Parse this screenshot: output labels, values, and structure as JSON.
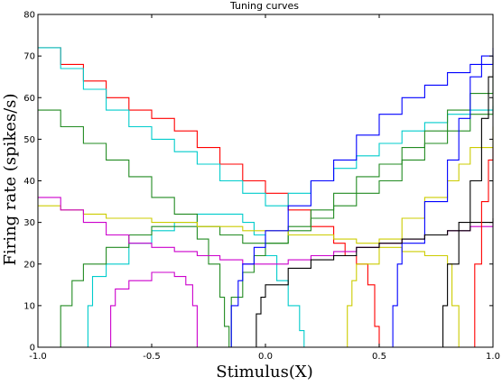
{
  "chart_data": {
    "type": "line",
    "title": "Tuning curves",
    "xlabel": "Stimulus(X)",
    "ylabel": "Firing rate (spikes/s)",
    "xlim": [
      -1.0,
      1.0
    ],
    "ylim": [
      0,
      80
    ],
    "xticks": [
      "-1.0",
      "-0.5",
      "0.0",
      "0.5",
      "1.0"
    ],
    "yticks": [
      "0",
      "10",
      "20",
      "30",
      "40",
      "50",
      "60",
      "70",
      "80"
    ],
    "grid": false,
    "series": [
      {
        "color": "#ff0000",
        "x": [
          -1.0,
          -0.9,
          -0.8,
          -0.7,
          -0.6,
          -0.5,
          -0.4,
          -0.3,
          -0.2,
          -0.1,
          0.0,
          0.1,
          0.2,
          0.3,
          0.35,
          0.4,
          0.45,
          0.48,
          0.5
        ],
        "y": [
          72,
          68,
          64,
          60,
          57,
          55,
          52,
          48,
          44,
          40,
          37,
          33,
          29,
          25,
          22,
          20,
          15,
          5,
          0
        ]
      },
      {
        "color": "#00cccc",
        "x": [
          -1.0,
          -0.9,
          -0.8,
          -0.7,
          -0.6,
          -0.5,
          -0.4,
          -0.3,
          -0.2,
          -0.1,
          0.0,
          0.1,
          0.2,
          0.3,
          0.4,
          0.5,
          0.6,
          0.7,
          0.8,
          0.9,
          1.0
        ],
        "y": [
          72,
          67,
          62,
          57,
          53,
          50,
          47,
          44,
          40,
          37,
          34,
          37,
          40,
          43,
          46,
          49,
          52,
          54,
          56,
          57,
          58
        ]
      },
      {
        "color": "#00cccc",
        "x": [
          -0.79,
          -0.78,
          -0.76,
          -0.7,
          -0.6,
          -0.5,
          -0.4,
          -0.3,
          -0.2,
          -0.1,
          -0.05,
          0.0,
          0.05,
          0.1,
          0.15,
          0.17
        ],
        "y": [
          0,
          10,
          17,
          20,
          25,
          28,
          30,
          32,
          32,
          30,
          27,
          22,
          16,
          10,
          4,
          0
        ]
      },
      {
        "color": "#228b22",
        "x": [
          -1.0,
          -0.9,
          -0.8,
          -0.7,
          -0.6,
          -0.5,
          -0.4,
          -0.3,
          -0.25,
          -0.2,
          -0.18,
          -0.16
        ],
        "y": [
          57,
          53,
          49,
          45,
          41,
          36,
          32,
          26,
          20,
          12,
          5,
          0
        ]
      },
      {
        "color": "#228b22",
        "x": [
          -0.92,
          -0.9,
          -0.85,
          -0.8,
          -0.7,
          -0.6,
          -0.5,
          -0.4,
          -0.3,
          -0.2,
          -0.1,
          0.0,
          0.1,
          0.2,
          0.3,
          0.4,
          0.5,
          0.6,
          0.7,
          0.8,
          0.9,
          1.0
        ],
        "y": [
          0,
          10,
          16,
          20,
          24,
          27,
          29,
          29,
          29,
          27,
          25,
          25,
          28,
          31,
          34,
          37,
          40,
          45,
          49,
          52,
          56,
          60
        ]
      },
      {
        "color": "#228b22",
        "x": [
          -0.2,
          -0.15,
          -0.1,
          -0.05,
          0.0,
          0.1,
          0.2,
          0.3,
          0.4,
          0.5,
          0.6,
          0.7,
          0.8,
          0.9,
          1.0
        ],
        "y": [
          0,
          12,
          18,
          22,
          25,
          29,
          33,
          37,
          41,
          44,
          48,
          52,
          57,
          61,
          65
        ]
      },
      {
        "color": "#cccc00",
        "x": [
          -1.0,
          -0.9,
          -0.8,
          -0.7,
          -0.6,
          -0.5,
          -0.4,
          -0.3,
          -0.2,
          -0.1,
          0.0,
          0.1,
          0.2,
          0.3,
          0.4,
          0.5,
          0.6,
          0.7,
          0.8,
          0.82,
          0.85
        ],
        "y": [
          34,
          33,
          32,
          31,
          31,
          30,
          30,
          29,
          29,
          28,
          28,
          27,
          27,
          26,
          25,
          24,
          23,
          22,
          20,
          10,
          0
        ]
      },
      {
        "color": "#cccc00",
        "x": [
          0.35,
          0.36,
          0.38,
          0.4,
          0.5,
          0.6,
          0.7,
          0.8,
          0.85,
          0.9,
          1.0
        ],
        "y": [
          0,
          10,
          16,
          20,
          26,
          31,
          36,
          40,
          44,
          48,
          53
        ]
      },
      {
        "color": "#cc00cc",
        "x": [
          -1.0,
          -0.9,
          -0.8,
          -0.7,
          -0.6,
          -0.5,
          -0.4,
          -0.3,
          -0.2,
          -0.1,
          0.0,
          0.1,
          0.2,
          0.3,
          0.4,
          0.5,
          0.6,
          0.7,
          0.8,
          0.9,
          1.0
        ],
        "y": [
          36,
          33,
          30,
          27,
          25,
          24,
          23,
          22,
          21,
          20,
          20,
          21,
          22,
          23,
          24,
          25,
          26,
          27,
          28,
          29,
          30
        ]
      },
      {
        "color": "#cc00cc",
        "x": [
          -0.69,
          -0.68,
          -0.66,
          -0.6,
          -0.5,
          -0.4,
          -0.35,
          -0.32,
          -0.3
        ],
        "y": [
          0,
          10,
          14,
          16,
          18,
          17,
          15,
          10,
          0
        ]
      },
      {
        "color": "#0000ff",
        "x": [
          -0.16,
          -0.15,
          -0.12,
          -0.1,
          -0.05,
          0.0,
          0.1,
          0.2,
          0.3,
          0.4,
          0.5,
          0.6,
          0.7,
          0.8,
          0.9,
          1.0
        ],
        "y": [
          0,
          10,
          16,
          20,
          24,
          28,
          34,
          40,
          45,
          51,
          56,
          60,
          63,
          66,
          68,
          70
        ]
      },
      {
        "color": "#0000ff",
        "x": [
          0.55,
          0.56,
          0.58,
          0.6,
          0.7,
          0.8,
          0.85,
          0.9,
          0.95,
          1.0
        ],
        "y": [
          0,
          10,
          20,
          25,
          35,
          45,
          55,
          65,
          70,
          72
        ]
      },
      {
        "color": "#000000",
        "x": [
          -0.05,
          -0.04,
          -0.02,
          0.0,
          0.1,
          0.2,
          0.3,
          0.4,
          0.5,
          0.6,
          0.7,
          0.8,
          0.9,
          1.0
        ],
        "y": [
          0,
          8,
          12,
          15,
          19,
          21,
          22,
          24,
          25,
          26,
          27,
          28,
          30,
          31
        ]
      },
      {
        "color": "#000000",
        "x": [
          0.77,
          0.78,
          0.8,
          0.85,
          0.9,
          0.95,
          0.98,
          1.0
        ],
        "y": [
          0,
          10,
          20,
          30,
          40,
          55,
          65,
          70
        ]
      },
      {
        "color": "#ff0000",
        "x": [
          0.9,
          0.92,
          0.95,
          0.98,
          1.0
        ],
        "y": [
          0,
          20,
          35,
          45,
          48
        ]
      }
    ]
  }
}
